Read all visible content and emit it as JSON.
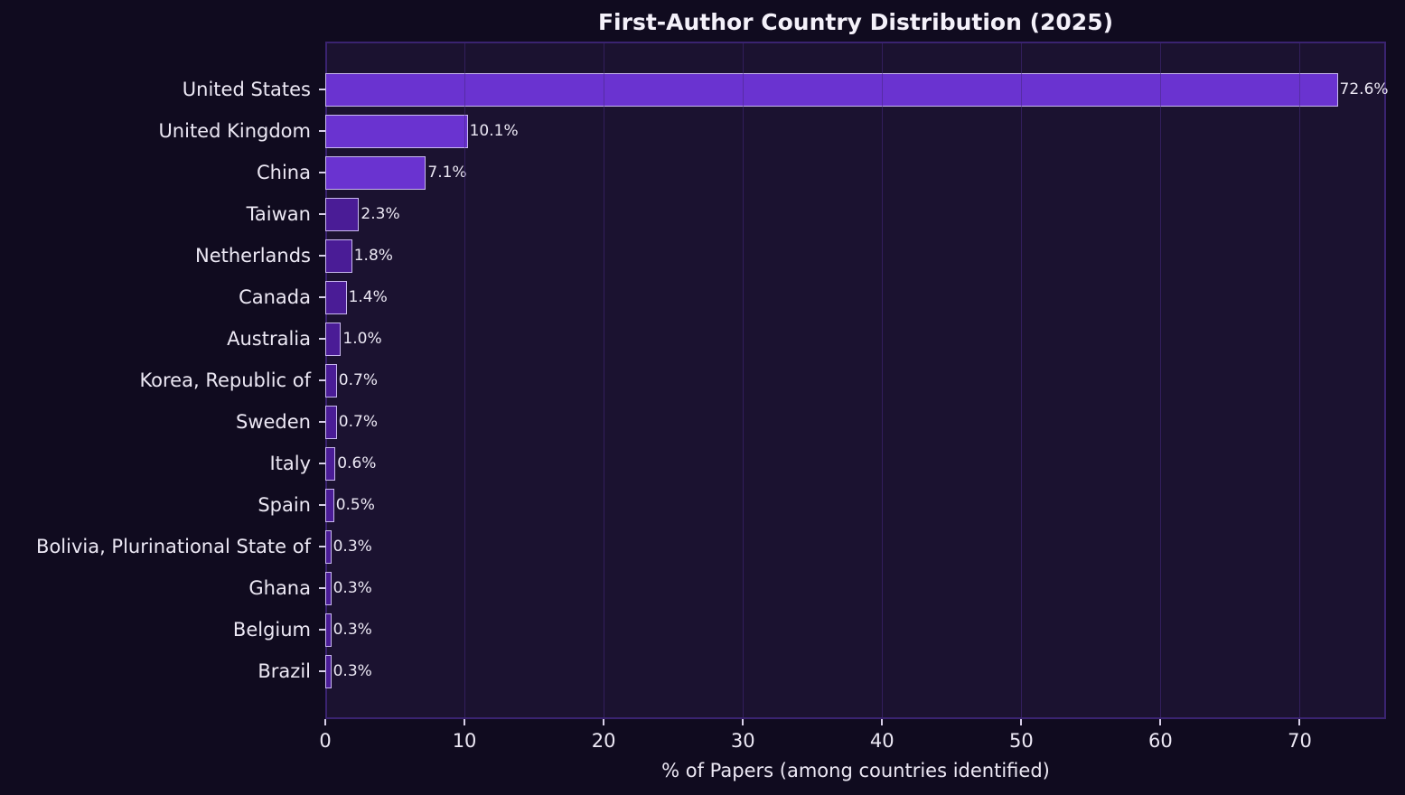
{
  "chart_data": {
    "type": "bar",
    "orientation": "horizontal",
    "title": "First-Author Country Distribution (2025)",
    "xlabel": "% of Papers (among countries identified)",
    "ylabel": "",
    "xlim": [
      0,
      76.2
    ],
    "xticks": [
      0,
      10,
      20,
      30,
      40,
      50,
      60,
      70
    ],
    "grid": true,
    "categories": [
      "United States",
      "United Kingdom",
      "China",
      "Taiwan",
      "Netherlands",
      "Canada",
      "Australia",
      "Korea, Republic of",
      "Sweden",
      "Italy",
      "Spain",
      "Bolivia, Plurinational State of",
      "Ghana",
      "Belgium",
      "Brazil"
    ],
    "values": [
      72.6,
      10.1,
      7.1,
      2.3,
      1.8,
      1.4,
      1.0,
      0.7,
      0.7,
      0.6,
      0.5,
      0.3,
      0.3,
      0.3,
      0.3
    ],
    "labels": [
      "72.6%",
      "10.1%",
      "7.1%",
      "2.3%",
      "1.8%",
      "1.4%",
      "1.0%",
      "0.7%",
      "0.7%",
      "0.6%",
      "0.5%",
      "0.3%",
      "0.3%",
      "0.3%",
      "0.3%"
    ],
    "colors": {
      "top3": "#6a33d0",
      "rest": "#4a1c96",
      "edge": "#c9b8f0",
      "background": "#100b1f",
      "plot_background": "#1b1230"
    }
  }
}
